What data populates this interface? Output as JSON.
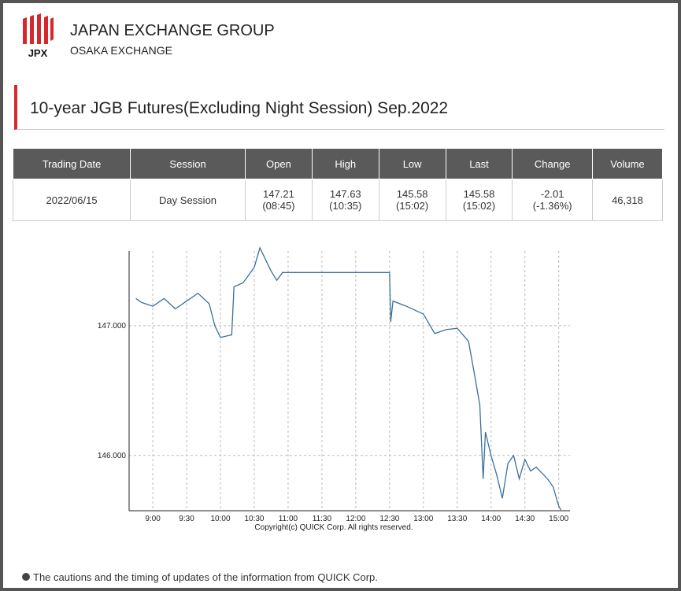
{
  "header": {
    "logo": "JPX",
    "title": "JAPAN EXCHANGE GROUP",
    "subtitle": "OSAKA EXCHANGE"
  },
  "heading": "10-year JGB Futures(Excluding Night Session) Sep.2022",
  "table": {
    "columns": [
      "Trading Date",
      "Session",
      "Open",
      "High",
      "Low",
      "Last",
      "Change",
      "Volume"
    ],
    "rows": [
      [
        "2022/06/15",
        "Day Session",
        [
          "147.21",
          "(08:45)"
        ],
        [
          "147.63",
          "(10:35)"
        ],
        [
          "145.58",
          "(15:02)"
        ],
        [
          "145.58",
          "(15:02)"
        ],
        [
          "-2.01",
          "(-1.36%)"
        ],
        "46,318"
      ]
    ]
  },
  "chart_data": {
    "type": "line",
    "annotation": "Copyright(c) QUICK Corp. All rights reserved.",
    "x": [
      "8:45",
      "8:50",
      "9:00",
      "9:10",
      "9:20",
      "9:30",
      "9:40",
      "9:50",
      "9:55",
      "10:00",
      "10:10",
      "10:12",
      "10:20",
      "10:30",
      "10:35",
      "10:45",
      "10:50",
      "10:55",
      "11:30",
      "12:30",
      "12:31",
      "12:33",
      "12:45",
      "13:00",
      "13:10",
      "13:20",
      "13:30",
      "13:40",
      "13:45",
      "13:50",
      "13:53",
      "13:55",
      "14:00",
      "14:05",
      "14:10",
      "14:15",
      "14:20",
      "14:25",
      "14:30",
      "14:35",
      "14:40",
      "14:50",
      "14:55",
      "15:00",
      "15:02"
    ],
    "series": [
      {
        "name": "10-year JGB Futures",
        "color": "#3a6f9e",
        "values": [
          147.21,
          147.18,
          147.15,
          147.21,
          147.13,
          147.19,
          147.25,
          147.17,
          147.0,
          146.91,
          146.93,
          147.3,
          147.33,
          147.45,
          147.6,
          147.42,
          147.35,
          147.41,
          147.41,
          147.41,
          147.03,
          147.19,
          147.15,
          147.09,
          146.94,
          146.97,
          146.98,
          146.88,
          146.64,
          146.39,
          145.82,
          146.18,
          146.0,
          145.85,
          145.67,
          145.94,
          146.0,
          145.82,
          145.97,
          145.88,
          145.91,
          145.82,
          145.76,
          145.61,
          145.58
        ]
      }
    ],
    "xlim": [
      "8:39",
      "15:10"
    ],
    "xticks": [
      "9:00",
      "9:30",
      "10:00",
      "10:30",
      "11:00",
      "11:30",
      "12:00",
      "12:30",
      "13:00",
      "13:30",
      "14:00",
      "14:30",
      "15:00"
    ],
    "ylim": [
      145.55,
      147.65
    ],
    "yticks": [
      {
        "value": 146,
        "label": "146.000"
      },
      {
        "value": 147,
        "label": "147.000"
      }
    ],
    "grid": true
  },
  "footer": "The cautions and the timing of updates of the information from QUICK Corp."
}
